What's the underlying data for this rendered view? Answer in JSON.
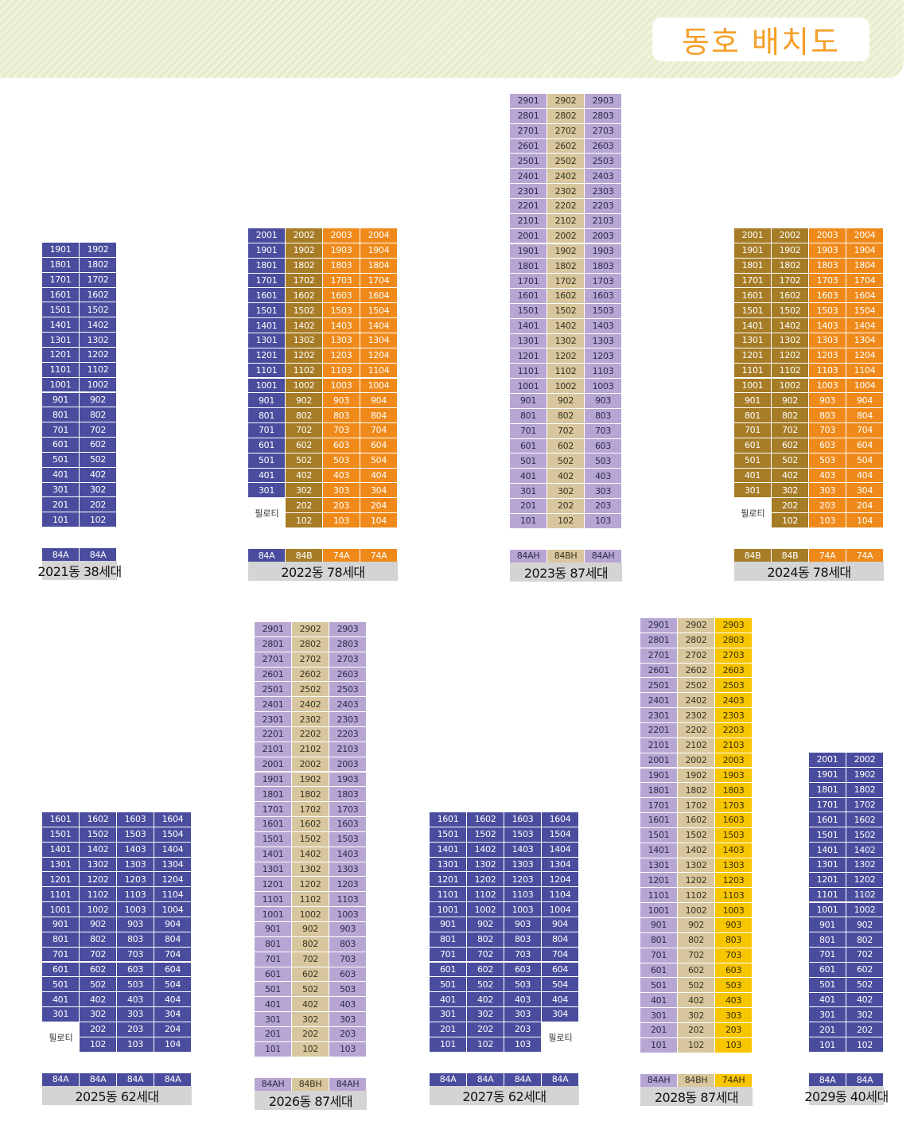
{
  "title": "동호 배치도",
  "colors": {
    "blue": "#4a4d9e",
    "lavender": "#b7a6d3",
    "beige": "#d8c79e",
    "olive": "#a77c26",
    "orange": "#ef8a1a",
    "yellow": "#f8c600",
    "caption_bg": "#d4d4d4"
  },
  "pilotis_label": "필로티",
  "buildings": [
    {
      "id": "b2021",
      "caption": "2021동 38세대",
      "cols": 2,
      "colors": [
        "blue",
        "blue"
      ],
      "types": [
        "84A",
        "84A"
      ],
      "top_floor": 19,
      "start_floors": [
        1,
        1
      ],
      "top_floors": [
        19,
        19
      ],
      "pilotis": false
    },
    {
      "id": "b2022",
      "caption": "2022동 78세대",
      "cols": 4,
      "colors": [
        "blue",
        "olive",
        "orange",
        "orange"
      ],
      "types": [
        "84A",
        "84B",
        "74A",
        "74A"
      ],
      "top_floor": 20,
      "start_floors": [
        3,
        1,
        1,
        1
      ],
      "top_floors": [
        20,
        20,
        20,
        20
      ],
      "pilotis": true
    },
    {
      "id": "b2023",
      "caption": "2023동 87세대",
      "cols": 3,
      "colors": [
        "lavender",
        "beige",
        "lavender"
      ],
      "types": [
        "84AH",
        "84BH",
        "84AH"
      ],
      "top_floor": 29,
      "start_floors": [
        1,
        1,
        1
      ],
      "top_floors": [
        29,
        29,
        29
      ],
      "pilotis": false
    },
    {
      "id": "b2024",
      "caption": "2024동 78세대",
      "cols": 4,
      "colors": [
        "olive",
        "olive",
        "orange",
        "orange"
      ],
      "types": [
        "84B",
        "84B",
        "74A",
        "74A"
      ],
      "top_floor": 20,
      "start_floors": [
        3,
        1,
        1,
        1
      ],
      "top_floors": [
        20,
        20,
        20,
        20
      ],
      "pilotis": true
    },
    {
      "id": "b2025",
      "caption": "2025동 62세대",
      "cols": 4,
      "colors": [
        "blue",
        "blue",
        "blue",
        "blue"
      ],
      "types": [
        "84A",
        "84A",
        "84A",
        "84A"
      ],
      "top_floor": 16,
      "start_floors": [
        3,
        1,
        1,
        1
      ],
      "top_floors": [
        16,
        16,
        16,
        16
      ],
      "pilotis": true
    },
    {
      "id": "b2026",
      "caption": "2026동 87세대",
      "cols": 3,
      "colors": [
        "lavender",
        "beige",
        "lavender"
      ],
      "types": [
        "84AH",
        "84BH",
        "84AH"
      ],
      "top_floor": 29,
      "start_floors": [
        1,
        1,
        1
      ],
      "top_floors": [
        29,
        29,
        29
      ],
      "pilotis": false
    },
    {
      "id": "b2027",
      "caption": "2027동 62세대",
      "cols": 4,
      "colors": [
        "blue",
        "blue",
        "blue",
        "blue"
      ],
      "types": [
        "84A",
        "84A",
        "84A",
        "84A"
      ],
      "top_floor": 16,
      "start_floors": [
        1,
        1,
        1,
        3
      ],
      "top_floors": [
        16,
        16,
        16,
        16
      ],
      "pilotis": true
    },
    {
      "id": "b2028",
      "caption": "2028동 87세대",
      "cols": 3,
      "colors": [
        "lavender",
        "beige",
        "yellow"
      ],
      "types": [
        "84AH",
        "84BH",
        "74AH"
      ],
      "top_floor": 29,
      "start_floors": [
        1,
        1,
        1
      ],
      "top_floors": [
        29,
        29,
        29
      ],
      "pilotis": false
    },
    {
      "id": "b2029",
      "caption": "2029동 40세대",
      "cols": 2,
      "colors": [
        "blue",
        "blue"
      ],
      "types": [
        "84A",
        "84A"
      ],
      "top_floor": 20,
      "start_floors": [
        1,
        1
      ],
      "top_floors": [
        20,
        20
      ],
      "pilotis": false
    }
  ]
}
